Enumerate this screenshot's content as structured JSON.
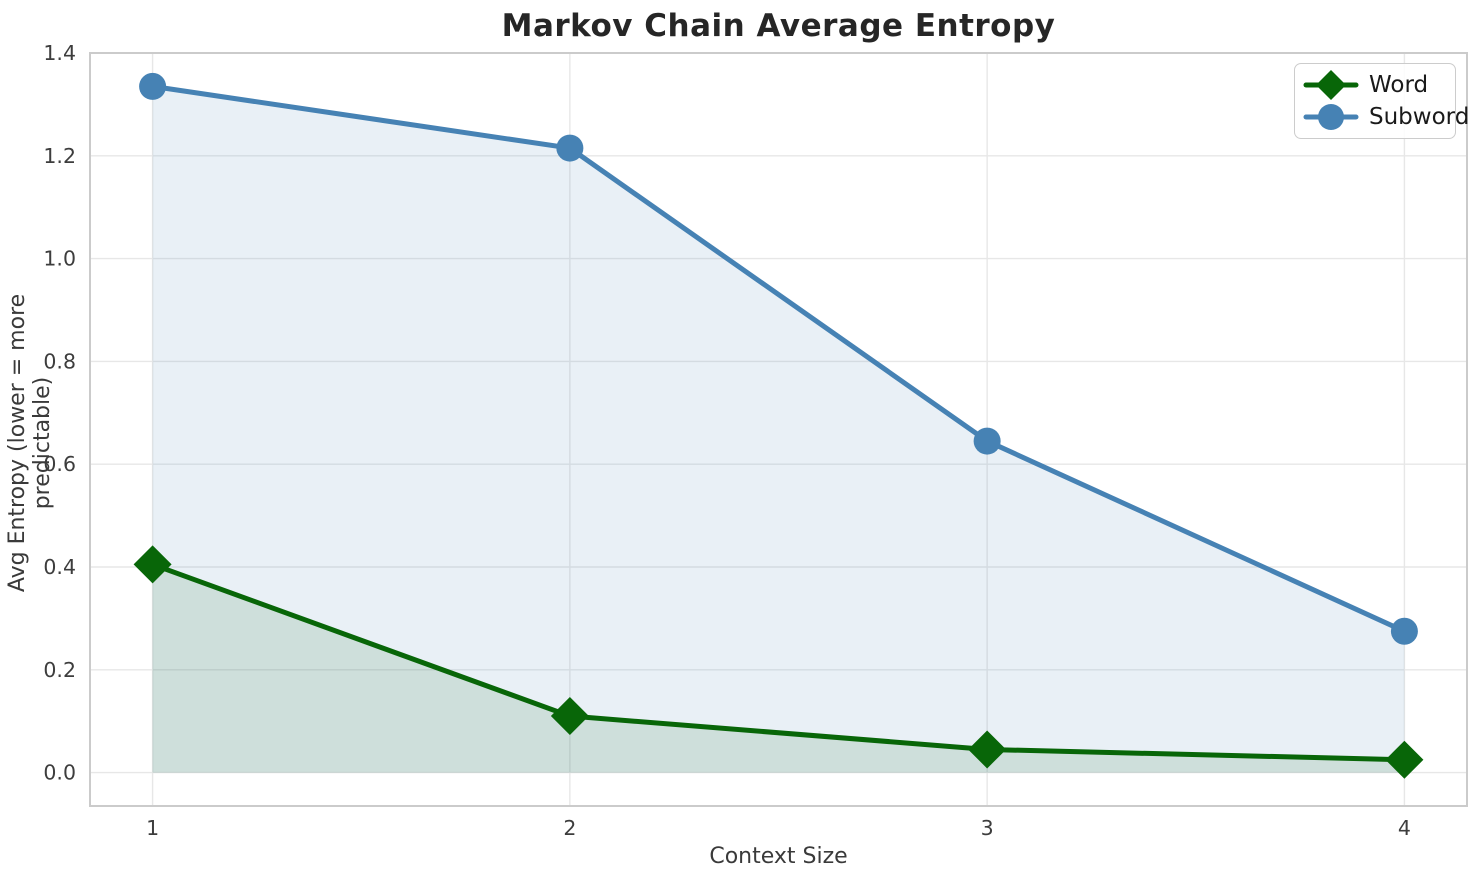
{
  "title": "Markov Chain Average Entropy",
  "chart_data": {
    "type": "line",
    "title": "Markov Chain Average Entropy",
    "xlabel": "Context Size",
    "ylabel": "Avg Entropy (lower = more predictable)",
    "x": [
      1,
      2,
      3,
      4
    ],
    "series": [
      {
        "name": "Word",
        "values": [
          0.405,
          0.11,
          0.045,
          0.025
        ],
        "color": "#086608",
        "marker": "diamond",
        "fill_to_zero": true
      },
      {
        "name": "Subword",
        "values": [
          1.335,
          1.215,
          0.645,
          0.275
        ],
        "color": "#4682B4",
        "marker": "circle",
        "fill_to_zero": true
      }
    ],
    "xlim": [
      0.85,
      4.15
    ],
    "ylim": [
      -0.065,
      1.4
    ],
    "xticks": [
      1,
      2,
      3,
      4
    ],
    "xticklabels": [
      "1",
      "2",
      "3",
      "4"
    ],
    "yticks": [
      0.0,
      0.2,
      0.4,
      0.6,
      0.8,
      1.0,
      1.2,
      1.4
    ],
    "yticklabels": [
      "0.0",
      "0.2",
      "0.4",
      "0.6",
      "0.8",
      "1.0",
      "1.2",
      "1.4"
    ],
    "grid": true,
    "legend_position": "upper right",
    "fill_opacity": 0.12,
    "colors": {
      "grid": "#e7e7e7",
      "spine": "#cbcbcb",
      "tick_label": "#3d3d3d",
      "word_green": "#086608",
      "subword_blue": "#4682B4"
    }
  }
}
